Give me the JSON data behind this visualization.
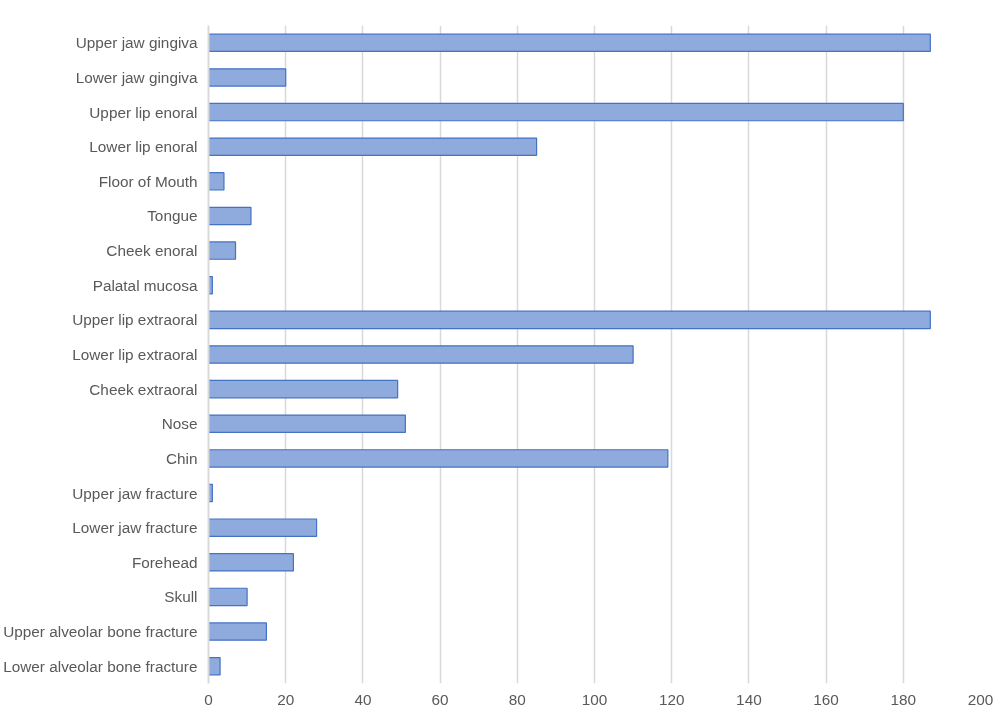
{
  "chart_data": {
    "type": "bar",
    "orientation": "horizontal",
    "categories": [
      "Upper jaw gingiva",
      "Lower jaw gingiva",
      "Upper lip enoral",
      "Lower lip enoral",
      "Floor of Mouth",
      "Tongue",
      "Cheek enoral",
      "Palatal mucosa",
      "Upper lip extraoral",
      "Lower lip extraoral",
      "Cheek extraoral",
      "Nose",
      "Chin",
      "Upper jaw fracture",
      "Lower jaw fracture",
      "Forehead",
      "Skull",
      "Upper alveolar bone fracture",
      "Lower alveolar bone fracture"
    ],
    "values": [
      187,
      20,
      180,
      85,
      4,
      11,
      7,
      1,
      187,
      110,
      49,
      51,
      119,
      1,
      28,
      22,
      10,
      15,
      3
    ],
    "color": "#8faadc",
    "xlim": [
      0,
      200
    ],
    "xticks": [
      0,
      20,
      40,
      60,
      80,
      100,
      120,
      140,
      160,
      180,
      200
    ],
    "grid": "x"
  }
}
